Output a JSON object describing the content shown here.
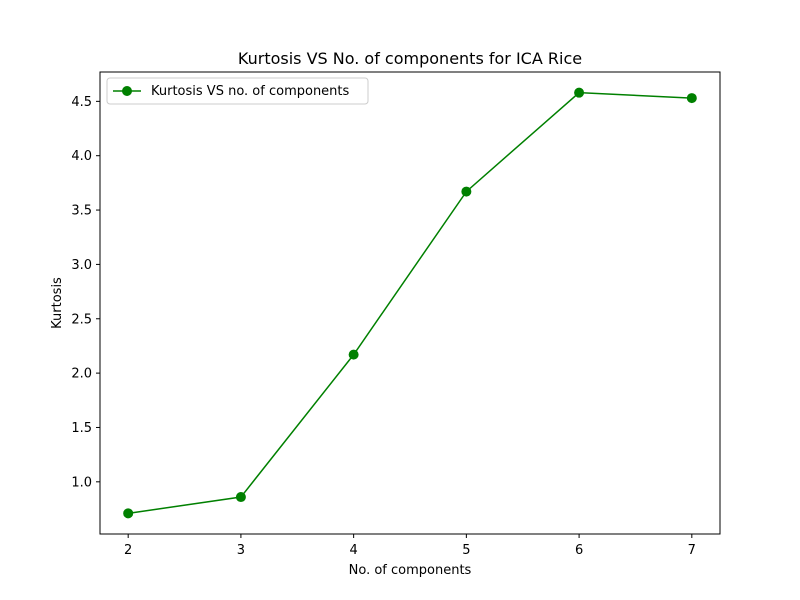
{
  "chart_data": {
    "type": "line",
    "title": "Kurtosis VS No. of components for ICA Rice",
    "xlabel": "No. of components",
    "ylabel": "Kurtosis",
    "x": [
      2,
      3,
      4,
      5,
      6,
      7
    ],
    "xticks": [
      2,
      3,
      4,
      5,
      6,
      7
    ],
    "yticks": [
      1.0,
      1.5,
      2.0,
      2.5,
      3.0,
      3.5,
      4.0,
      4.5
    ],
    "ytick_labels": [
      "1.0",
      "1.5",
      "2.0",
      "2.5",
      "3.0",
      "3.5",
      "4.0",
      "4.5"
    ],
    "xlim": [
      1.75,
      7.25
    ],
    "ylim": [
      0.52,
      4.77
    ],
    "grid": false,
    "legend_position": "top-left",
    "series": [
      {
        "name": "Kurtosis VS no. of components",
        "color": "#008000",
        "marker": "circle",
        "values": [
          0.71,
          0.86,
          2.17,
          3.67,
          4.58,
          4.53
        ]
      }
    ]
  }
}
